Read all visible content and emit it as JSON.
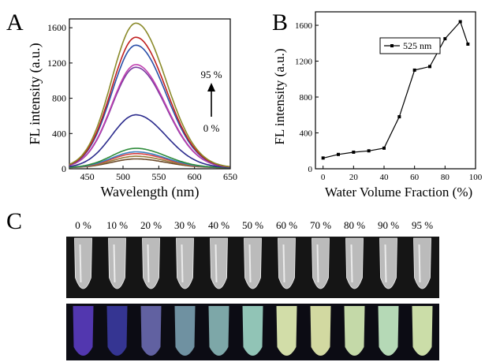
{
  "panel_labels": {
    "a": "A",
    "b": "B",
    "c": "C"
  },
  "chart_data": [
    {
      "panel": "A",
      "type": "line",
      "xlabel": "Wavelength (nm)",
      "ylabel": "FL intensity (a.u.)",
      "xlim": [
        425,
        650
      ],
      "ylim": [
        0,
        1700
      ],
      "xticks": [
        450,
        500,
        550,
        600,
        650
      ],
      "yticks": [
        0,
        400,
        800,
        1200,
        1600
      ],
      "annotation": {
        "top": "95 %",
        "bottom": "0 %"
      },
      "peak_wavelength": 518,
      "series": [
        {
          "color": "#6b4a2a",
          "peak": 100
        },
        {
          "color": "#9a7a3a",
          "peak": 130
        },
        {
          "color": "#d94040",
          "peak": 160
        },
        {
          "color": "#3a7fc0",
          "peak": 180
        },
        {
          "color": "#2e8b3a",
          "peak": 220
        },
        {
          "color": "#2a2a8c",
          "peak": 600
        },
        {
          "color": "#7a3aa0",
          "peak": 1140
        },
        {
          "color": "#c040b0",
          "peak": 1170
        },
        {
          "color": "#2a4fa8",
          "peak": 1390
        },
        {
          "color": "#c02020",
          "peak": 1480
        },
        {
          "color": "#8a8a2a",
          "peak": 1640
        }
      ]
    },
    {
      "panel": "B",
      "type": "line",
      "xlabel": "Water Volume Fraction (%)",
      "ylabel": "FL intensity (a.u.)",
      "xlim": [
        -5,
        100
      ],
      "ylim": [
        0,
        1750
      ],
      "xticks": [
        0,
        20,
        40,
        60,
        80,
        100
      ],
      "yticks": [
        0,
        400,
        800,
        1200,
        1600
      ],
      "legend": "top-right",
      "series": [
        {
          "name": "525 nm",
          "x": [
            0,
            10,
            20,
            30,
            40,
            50,
            60,
            70,
            80,
            90,
            95
          ],
          "y": [
            120,
            160,
            185,
            200,
            230,
            580,
            1100,
            1140,
            1450,
            1640,
            1390
          ]
        }
      ]
    }
  ],
  "photo": {
    "labels": [
      "0 %",
      "10 %",
      "20 %",
      "30 %",
      "40 %",
      "50 %",
      "60 %",
      "70 %",
      "80 %",
      "90 %",
      "95 %"
    ],
    "uv_glow": [
      "#5a3cc0",
      "#3a3aa0",
      "#6a6ab0",
      "#7aa0b0",
      "#8ab8b8",
      "#a0d8c8",
      "#e8f4b8",
      "#e8f0b0",
      "#d8f0b8",
      "#c8f0c8",
      "#e0f4b8"
    ]
  }
}
